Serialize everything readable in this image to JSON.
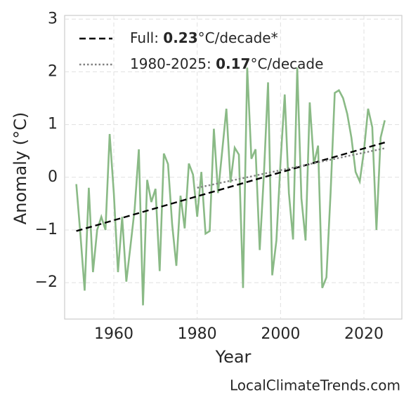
{
  "chart_data": {
    "type": "line",
    "xlabel": "Year",
    "ylabel": "Anomaly (°C)",
    "footer": "LocalClimateTrends.com",
    "xlim": [
      1948.2,
      2029.1
    ],
    "ylim": [
      -2.69,
      3.07
    ],
    "xticks": [
      1960,
      1980,
      2000,
      2020
    ],
    "yticks": [
      {
        "value": -2,
        "label": "−2"
      },
      {
        "value": -1,
        "label": "−1"
      },
      0,
      1,
      2,
      3
    ],
    "grid": true,
    "legend": "upper left",
    "series": [
      {
        "color": "#8aba86",
        "style": "solid",
        "x": [
          1951,
          1952,
          1953,
          1954,
          1955,
          1956,
          1957,
          1958,
          1959,
          1960,
          1961,
          1962,
          1963,
          1964,
          1965,
          1966,
          1967,
          1968,
          1969,
          1970,
          1971,
          1972,
          1973,
          1974,
          1975,
          1976,
          1977,
          1978,
          1979,
          1980,
          1981,
          1982,
          1983,
          1984,
          1985,
          1986,
          1987,
          1988,
          1989,
          1990,
          1991,
          1992,
          1993,
          1994,
          1995,
          1996,
          1997,
          1998,
          1999,
          2000,
          2001,
          2002,
          2003,
          2004,
          2005,
          2006,
          2007,
          2008,
          2009,
          2010,
          2011,
          2012,
          2013,
          2014,
          2015,
          2016,
          2017,
          2018,
          2019,
          2020,
          2021,
          2022,
          2023,
          2024,
          2025
        ],
        "values": [
          -0.13,
          -1.1,
          -2.15,
          -0.2,
          -1.8,
          -1.0,
          -0.75,
          -1.0,
          0.82,
          -0.3,
          -1.8,
          -0.75,
          -1.98,
          -1.3,
          -0.6,
          0.53,
          -2.43,
          -0.05,
          -0.47,
          -0.22,
          -1.78,
          0.45,
          0.25,
          -0.9,
          -1.68,
          -0.35,
          -0.97,
          0.26,
          0.05,
          -0.75,
          0.1,
          -1.07,
          -1.02,
          0.92,
          -0.3,
          0.5,
          1.3,
          -0.1,
          0.56,
          0.43,
          -2.1,
          2.08,
          0.35,
          0.53,
          -1.38,
          0.05,
          1.8,
          -1.86,
          -1.2,
          0.3,
          1.57,
          -0.3,
          -1.18,
          2.08,
          -0.4,
          -1.2,
          1.42,
          0.25,
          0.6,
          -2.1,
          -1.9,
          -0.3,
          1.6,
          1.65,
          1.5,
          1.2,
          0.75,
          0.1,
          -0.08,
          0.5,
          1.3,
          0.95,
          -1.0,
          0.75,
          1.08
        ]
      },
      {
        "name_parts": [
          "Full: ",
          "0.23",
          "°C/decade*"
        ],
        "color": "#000000",
        "style": "dashed",
        "x": [
          1951,
          2025
        ],
        "values": [
          -1.02,
          0.66
        ]
      },
      {
        "name_parts": [
          "1980-2025: ",
          "0.17",
          "°C/decade"
        ],
        "color": "#808080",
        "style": "dotted",
        "x": [
          1980,
          2025
        ],
        "values": [
          -0.2,
          0.55
        ]
      }
    ]
  }
}
